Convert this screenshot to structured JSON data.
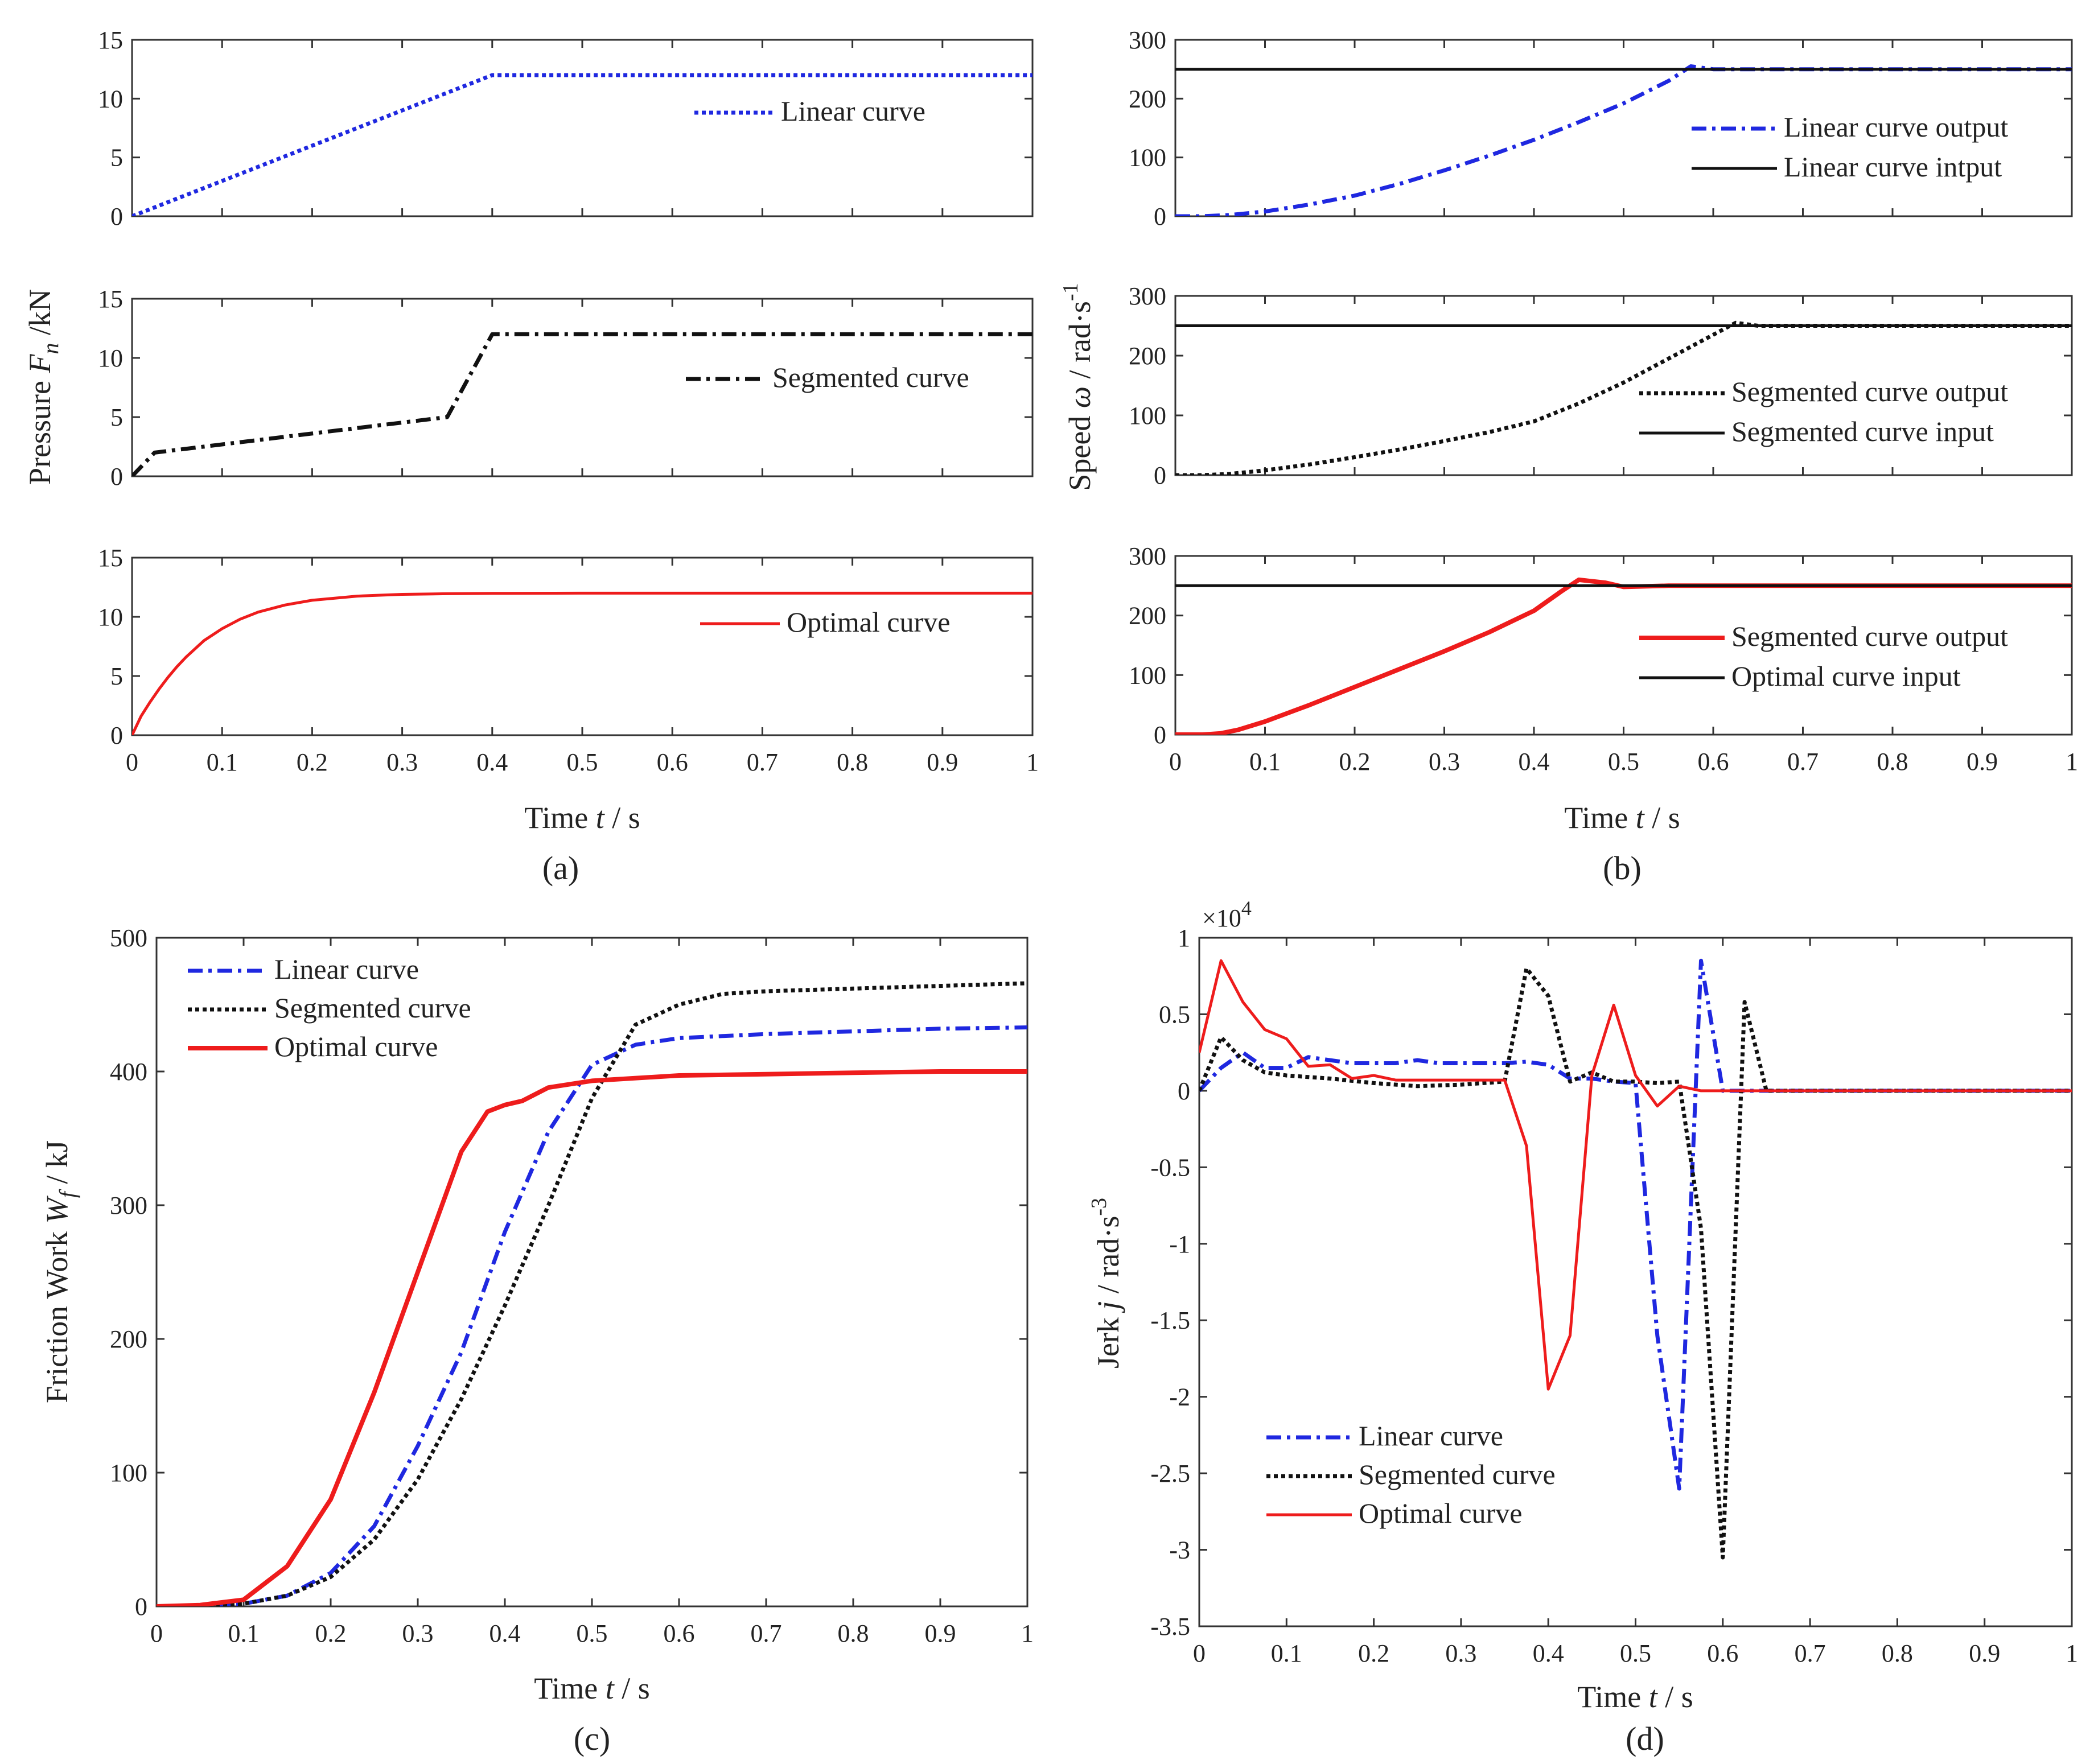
{
  "colors": {
    "blue": "#1f28e0",
    "black": "#111111",
    "red": "#ee1c1c",
    "axis": "#333333"
  },
  "chart_data": [
    {
      "id": "a1",
      "type": "line",
      "caption": "",
      "xlabel": "",
      "ylabel": "",
      "xlim": [
        0,
        1
      ],
      "ylim": [
        0,
        15
      ],
      "xticks": [
        "0",
        "0.1",
        "0.2",
        "0.3",
        "0.4",
        "0.5",
        "0.6",
        "0.7",
        "0.8",
        "0.9",
        "1"
      ],
      "show_xticks": false,
      "yticks": [
        "0",
        "5",
        "10",
        "15"
      ],
      "legend": [
        {
          "label": "Linear curve",
          "style": "dotted",
          "color": "#1f28e0"
        }
      ],
      "series": [
        {
          "name": "Linear curve",
          "style": "dotted",
          "color": "#1f28e0",
          "x": [
            0,
            0.4,
            1
          ],
          "y": [
            0,
            12,
            12
          ]
        }
      ]
    },
    {
      "id": "a2",
      "type": "line",
      "caption": "",
      "xlabel": "",
      "ylabel": "Pressure  F_n /kN",
      "ylabel_parts": {
        "pre": "Pressure  ",
        "sym": "F",
        "sub": "n",
        "post": " /kN"
      },
      "xlim": [
        0,
        1
      ],
      "ylim": [
        0,
        15
      ],
      "xticks": [
        "0",
        "0.1",
        "0.2",
        "0.3",
        "0.4",
        "0.5",
        "0.6",
        "0.7",
        "0.8",
        "0.9",
        "1"
      ],
      "show_xticks": false,
      "yticks": [
        "0",
        "5",
        "10",
        "15"
      ],
      "legend": [
        {
          "label": "Segmented curve",
          "style": "dashdot",
          "color": "#111111"
        }
      ],
      "series": [
        {
          "name": "Segmented curve",
          "style": "dashdot",
          "color": "#111111",
          "x": [
            0,
            0.025,
            0.35,
            0.4,
            1
          ],
          "y": [
            0,
            2,
            5,
            12,
            12
          ]
        }
      ]
    },
    {
      "id": "a3",
      "type": "line",
      "caption": "(a)",
      "xlabel": "Time  t / s",
      "xlabel_parts": {
        "pre": "Time  ",
        "sym": "t",
        "post": " / s"
      },
      "ylabel": "",
      "xlim": [
        0,
        1
      ],
      "ylim": [
        0,
        15
      ],
      "xticks": [
        "0",
        "0.1",
        "0.2",
        "0.3",
        "0.4",
        "0.5",
        "0.6",
        "0.7",
        "0.8",
        "0.9",
        "1"
      ],
      "show_xticks": true,
      "yticks": [
        "0",
        "5",
        "10",
        "15"
      ],
      "legend": [
        {
          "label": "Optimal curve",
          "style": "solid",
          "color": "#ee1c1c"
        }
      ],
      "series": [
        {
          "name": "Optimal curve",
          "style": "solid",
          "color": "#ee1c1c",
          "x": [
            0,
            0.01,
            0.02,
            0.03,
            0.04,
            0.05,
            0.06,
            0.08,
            0.1,
            0.12,
            0.14,
            0.17,
            0.2,
            0.25,
            0.3,
            0.35,
            0.4,
            0.5,
            0.6,
            0.8,
            1
          ],
          "y": [
            0,
            1.6,
            2.8,
            3.9,
            4.9,
            5.8,
            6.6,
            8.0,
            9.0,
            9.8,
            10.4,
            11.0,
            11.4,
            11.75,
            11.9,
            11.95,
            11.98,
            12,
            12,
            12,
            12
          ]
        }
      ]
    },
    {
      "id": "b1",
      "type": "line",
      "caption": "",
      "xlabel": "",
      "ylabel": "",
      "xlim": [
        0,
        1
      ],
      "ylim": [
        0,
        300
      ],
      "xticks": [
        "0",
        "0.1",
        "0.2",
        "0.3",
        "0.4",
        "0.5",
        "0.6",
        "0.7",
        "0.8",
        "0.9",
        "1"
      ],
      "show_xticks": false,
      "yticks": [
        "0",
        "100",
        "200",
        "300"
      ],
      "legend": [
        {
          "label": "Linear curve output",
          "style": "dashdot",
          "color": "#1f28e0"
        },
        {
          "label": "Linear curve intput",
          "style": "solid",
          "color": "#111111"
        }
      ],
      "series": [
        {
          "name": "Linear curve output",
          "style": "dashdot",
          "color": "#1f28e0",
          "x": [
            0,
            0.03,
            0.06,
            0.1,
            0.15,
            0.2,
            0.25,
            0.3,
            0.35,
            0.4,
            0.45,
            0.5,
            0.55,
            0.575,
            0.6,
            0.7,
            1
          ],
          "y": [
            0,
            0,
            2,
            8,
            20,
            35,
            55,
            78,
            103,
            130,
            160,
            192,
            230,
            255,
            250,
            250,
            250
          ]
        },
        {
          "name": "Linear curve intput",
          "style": "solid",
          "color": "#111111",
          "x": [
            0,
            1
          ],
          "y": [
            250,
            250
          ]
        }
      ]
    },
    {
      "id": "b2",
      "type": "line",
      "caption": "",
      "xlabel": "",
      "ylabel": "Speed ω / rad·s⁻¹",
      "ylabel_parts": {
        "pre": "Speed ",
        "sym": "ω",
        "post": " / rad·s",
        "sup": "-1"
      },
      "xlim": [
        0,
        1
      ],
      "ylim": [
        0,
        300
      ],
      "xticks": [
        "0",
        "0.1",
        "0.2",
        "0.3",
        "0.4",
        "0.5",
        "0.6",
        "0.7",
        "0.8",
        "0.9",
        "1"
      ],
      "show_xticks": false,
      "yticks": [
        "0",
        "100",
        "200",
        "300"
      ],
      "legend": [
        {
          "label": "Segmented curve output",
          "style": "dotted",
          "color": "#111111"
        },
        {
          "label": "Segmented curve input",
          "style": "solid",
          "color": "#111111"
        }
      ],
      "series": [
        {
          "name": "Segmented curve output",
          "style": "dotted",
          "color": "#111111",
          "x": [
            0,
            0.03,
            0.06,
            0.1,
            0.15,
            0.2,
            0.25,
            0.3,
            0.35,
            0.4,
            0.45,
            0.5,
            0.55,
            0.6,
            0.625,
            0.65,
            0.7,
            1
          ],
          "y": [
            0,
            0,
            2,
            8,
            18,
            30,
            43,
            57,
            72,
            90,
            120,
            155,
            195,
            235,
            255,
            250,
            250,
            250
          ]
        },
        {
          "name": "Segmented curve input",
          "style": "solid",
          "color": "#111111",
          "x": [
            0,
            1
          ],
          "y": [
            250,
            250
          ]
        }
      ]
    },
    {
      "id": "b3",
      "type": "line",
      "caption": "(b)",
      "xlabel": "Time  t / s",
      "xlabel_parts": {
        "pre": "Time  ",
        "sym": "t",
        "post": " / s"
      },
      "ylabel": "",
      "xlim": [
        0,
        1
      ],
      "ylim": [
        0,
        300
      ],
      "xticks": [
        "0",
        "0.1",
        "0.2",
        "0.3",
        "0.4",
        "0.5",
        "0.6",
        "0.7",
        "0.8",
        "0.9",
        "1"
      ],
      "show_xticks": true,
      "yticks": [
        "0",
        "100",
        "200",
        "300"
      ],
      "legend": [
        {
          "label": "Segmented curve output",
          "style": "solid-thick",
          "color": "#ee1c1c"
        },
        {
          "label": "Optimal curve input",
          "style": "solid",
          "color": "#111111"
        }
      ],
      "series": [
        {
          "name": "Segmented curve output",
          "style": "solid-thick",
          "color": "#ee1c1c",
          "x": [
            0,
            0.03,
            0.05,
            0.07,
            0.1,
            0.15,
            0.2,
            0.25,
            0.3,
            0.35,
            0.4,
            0.43,
            0.45,
            0.48,
            0.5,
            0.55,
            0.6,
            1
          ],
          "y": [
            0,
            0,
            2,
            8,
            22,
            50,
            80,
            110,
            140,
            172,
            208,
            240,
            260,
            255,
            248,
            250,
            250,
            250
          ]
        },
        {
          "name": "Optimal curve input",
          "style": "solid",
          "color": "#111111",
          "x": [
            0,
            1
          ],
          "y": [
            250,
            250
          ]
        }
      ]
    },
    {
      "id": "c",
      "type": "line",
      "caption": "(c)",
      "xlabel": "Time  t / s",
      "xlabel_parts": {
        "pre": "Time  ",
        "sym": "t",
        "post": " / s"
      },
      "ylabel": "Friction Work W_f / kJ",
      "ylabel_parts": {
        "pre": "Friction Work ",
        "sym": "W",
        "sub": "f",
        "post": " / kJ"
      },
      "xlim": [
        0,
        1
      ],
      "ylim": [
        0,
        500
      ],
      "xticks": [
        "0",
        "0.1",
        "0.2",
        "0.3",
        "0.4",
        "0.5",
        "0.6",
        "0.7",
        "0.8",
        "0.9",
        "1"
      ],
      "show_xticks": true,
      "yticks": [
        "0",
        "100",
        "200",
        "300",
        "400",
        "500"
      ],
      "legend": [
        {
          "label": "Linear curve",
          "style": "dashdot",
          "color": "#1f28e0"
        },
        {
          "label": "Segmented curve",
          "style": "dotted",
          "color": "#111111"
        },
        {
          "label": "Optimal curve",
          "style": "solid-thick",
          "color": "#ee1c1c"
        }
      ],
      "series": [
        {
          "name": "Linear curve",
          "style": "dashdot",
          "color": "#1f28e0",
          "x": [
            0,
            0.1,
            0.15,
            0.2,
            0.25,
            0.3,
            0.35,
            0.4,
            0.45,
            0.5,
            0.55,
            0.6,
            0.7,
            0.8,
            0.9,
            1
          ],
          "y": [
            0,
            2,
            8,
            25,
            60,
            120,
            190,
            280,
            355,
            405,
            420,
            425,
            428,
            430,
            432,
            433
          ]
        },
        {
          "name": "Segmented curve",
          "style": "dotted",
          "color": "#111111",
          "x": [
            0,
            0.1,
            0.15,
            0.2,
            0.25,
            0.3,
            0.35,
            0.4,
            0.45,
            0.5,
            0.55,
            0.6,
            0.65,
            0.7,
            0.8,
            0.9,
            1
          ],
          "y": [
            0,
            2,
            8,
            22,
            50,
            95,
            155,
            225,
            300,
            380,
            435,
            450,
            458,
            460,
            462,
            464,
            466
          ]
        },
        {
          "name": "Optimal curve",
          "style": "solid-thick",
          "color": "#ee1c1c",
          "x": [
            0,
            0.05,
            0.1,
            0.15,
            0.2,
            0.25,
            0.3,
            0.35,
            0.38,
            0.4,
            0.42,
            0.45,
            0.5,
            0.6,
            0.7,
            0.8,
            0.9,
            1
          ],
          "y": [
            0,
            1,
            5,
            30,
            80,
            160,
            250,
            340,
            370,
            375,
            378,
            388,
            393,
            397,
            398,
            399,
            400,
            400
          ]
        }
      ]
    },
    {
      "id": "d",
      "type": "line",
      "caption": "(d)",
      "xlabel": "Time  t / s",
      "xlabel_parts": {
        "pre": "Time  ",
        "sym": "t",
        "post": " / s"
      },
      "ylabel": "Jerk j / rad·s⁻³",
      "ylabel_parts": {
        "pre": "Jerk ",
        "sym": "j",
        "post": " / rad·s",
        "sup": "-3"
      },
      "exponent_label": "×10",
      "exponent_power": "4",
      "xlim": [
        0,
        1
      ],
      "ylim": [
        -3.5,
        1
      ],
      "xticks": [
        "0",
        "0.1",
        "0.2",
        "0.3",
        "0.4",
        "0.5",
        "0.6",
        "0.7",
        "0.8",
        "0.9",
        "1"
      ],
      "show_xticks": true,
      "yticks": [
        "-3.5",
        "-3",
        "-2.5",
        "-2",
        "-1.5",
        "-1",
        "-0.5",
        "0",
        "0.5",
        "1"
      ],
      "legend": [
        {
          "label": "Linear curve",
          "style": "dashdot",
          "color": "#1f28e0"
        },
        {
          "label": "Segmented curve",
          "style": "dotted",
          "color": "#111111"
        },
        {
          "label": "Optimal curve",
          "style": "solid",
          "color": "#ee1c1c"
        }
      ],
      "series": [
        {
          "name": "Linear curve",
          "style": "dashdot",
          "color": "#1f28e0",
          "x": [
            0,
            0.025,
            0.05,
            0.075,
            0.1,
            0.125,
            0.15,
            0.175,
            0.2,
            0.225,
            0.25,
            0.275,
            0.3,
            0.325,
            0.35,
            0.375,
            0.4,
            0.425,
            0.45,
            0.475,
            0.5,
            0.525,
            0.55,
            0.575,
            0.6,
            0.65,
            1
          ],
          "y": [
            0,
            0.15,
            0.25,
            0.15,
            0.15,
            0.22,
            0.2,
            0.18,
            0.18,
            0.18,
            0.2,
            0.18,
            0.18,
            0.18,
            0.18,
            0.19,
            0.17,
            0.08,
            0.08,
            0.06,
            0.05,
            -1.6,
            -2.6,
            0.85,
            0,
            0,
            0
          ]
        },
        {
          "name": "Segmented curve",
          "style": "dotted",
          "color": "#111111",
          "x": [
            0,
            0.025,
            0.05,
            0.075,
            0.1,
            0.15,
            0.2,
            0.25,
            0.3,
            0.35,
            0.375,
            0.4,
            0.425,
            0.45,
            0.475,
            0.5,
            0.525,
            0.55,
            0.575,
            0.6,
            0.625,
            0.65,
            0.7,
            1
          ],
          "y": [
            0,
            0.35,
            0.2,
            0.12,
            0.1,
            0.08,
            0.05,
            0.03,
            0.04,
            0.06,
            0.8,
            0.62,
            0.06,
            0.12,
            0.06,
            0.06,
            0.05,
            0.06,
            -0.9,
            -3.05,
            0.58,
            0,
            0,
            0
          ]
        },
        {
          "name": "Optimal curve",
          "style": "solid",
          "color": "#ee1c1c",
          "x": [
            0,
            0.025,
            0.05,
            0.075,
            0.1,
            0.125,
            0.15,
            0.175,
            0.2,
            0.225,
            0.25,
            0.275,
            0.3,
            0.325,
            0.35,
            0.375,
            0.4,
            0.425,
            0.45,
            0.475,
            0.5,
            0.525,
            0.55,
            0.575,
            0.6,
            0.65,
            1
          ],
          "y": [
            0.25,
            0.85,
            0.58,
            0.4,
            0.34,
            0.16,
            0.17,
            0.08,
            0.1,
            0.07,
            0.07,
            0.07,
            0.07,
            0.07,
            0.07,
            -0.36,
            -1.95,
            -1.6,
            0.1,
            0.56,
            0.1,
            -0.1,
            0.03,
            0,
            0,
            0,
            0
          ]
        }
      ]
    }
  ]
}
